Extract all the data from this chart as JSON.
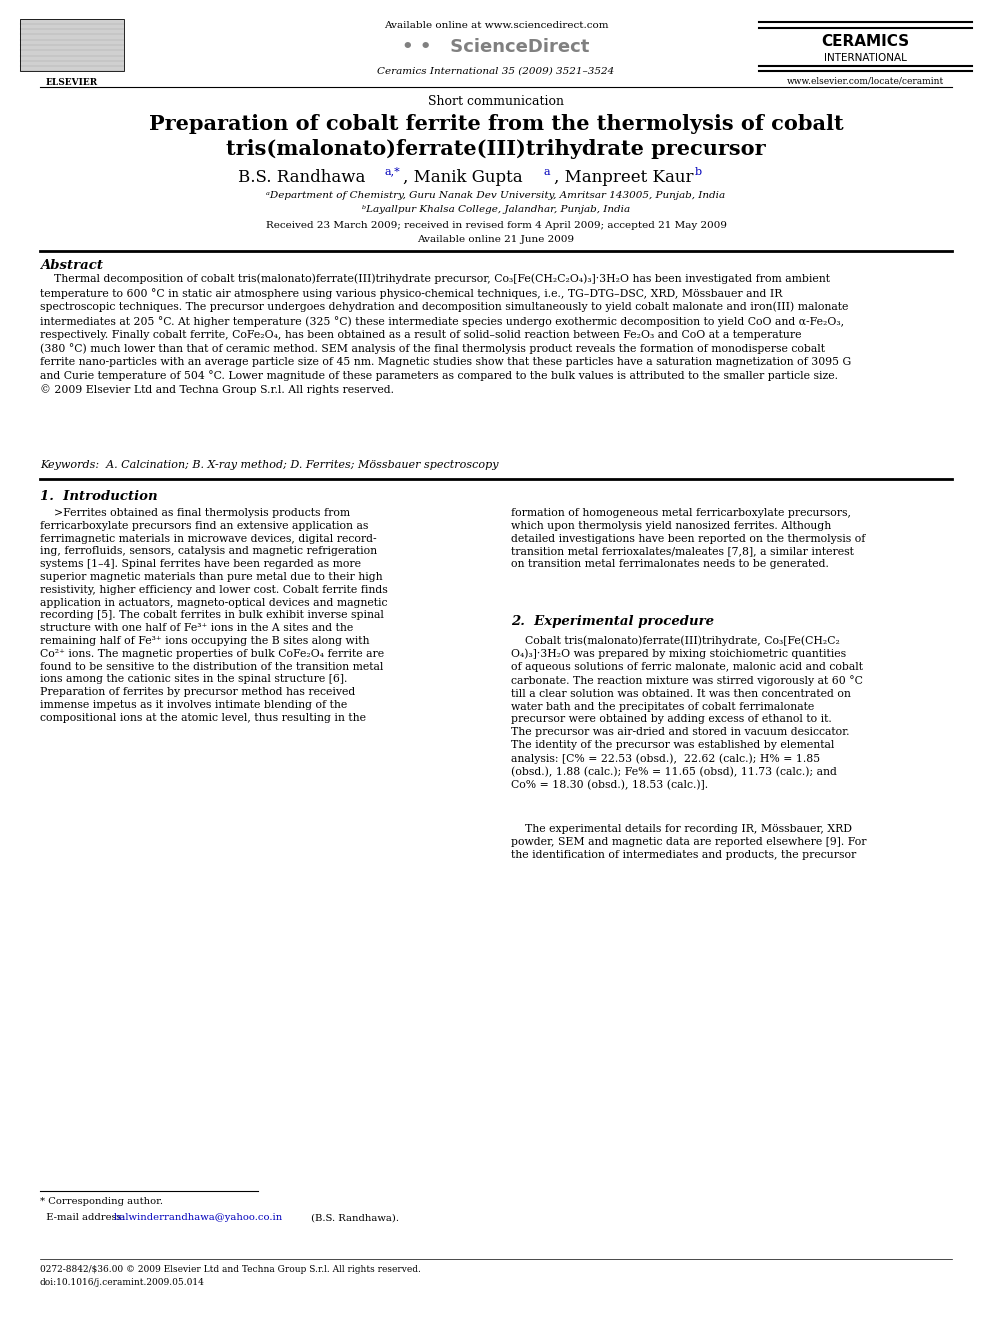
{
  "background_color": "#ffffff",
  "page_width": 9.92,
  "page_height": 13.23,
  "header": {
    "available_online": "Available online at www.sciencedirect.com",
    "journal_info": "Ceramics International 35 (2009) 3521–3524",
    "website": "www.elsevier.com/locate/ceramint",
    "ceramics_line1": "CERAMICS",
    "ceramics_line2": "INTERNATIONAL"
  },
  "article_type": "Short communication",
  "title_line1": "Preparation of cobalt ferrite from the thermolysis of cobalt",
  "title_line2": "tris(malonato)ferrate(III)trihydrate precursor",
  "affil1": "ᵃDepartment of Chemistry, Guru Nanak Dev University, Amritsar 143005, Punjab, India",
  "affil2": "ᵇLayallpur Khalsa College, Jalandhar, Punjab, India",
  "received": "Received 23 March 2009; received in revised form 4 April 2009; accepted 21 May 2009",
  "available_online2": "Available online 21 June 2009",
  "abstract_title": "Abstract",
  "abstract_text": "    Thermal decomposition of cobalt tris(malonato)ferrate(III)trihydrate precursor, Co₃[Fe(CH₂C₂O₄)₃]·3H₂O has been investigated from ambient\ntemperature to 600 °C in static air atmosphere using various physico-chemical techniques, i.e., TG–DTG–DSC, XRD, Mössbauer and IR\nspectroscopic techniques. The precursor undergoes dehydration and decomposition simultaneously to yield cobalt malonate and iron(III) malonate\nintermediates at 205 °C. At higher temperature (325 °C) these intermediate species undergo exothermic decomposition to yield CoO and α-Fe₂O₃,\nrespectively. Finally cobalt ferrite, CoFe₂O₄, has been obtained as a result of solid–solid reaction between Fe₂O₃ and CoO at a temperature\n(380 °C) much lower than that of ceramic method. SEM analysis of the final thermolysis product reveals the formation of monodisperse cobalt\nferrite nano-particles with an average particle size of 45 nm. Magnetic studies show that these particles have a saturation magnetization of 3095 G\nand Curie temperature of 504 °C. Lower magnitude of these parameters as compared to the bulk values is attributed to the smaller particle size.\n© 2009 Elsevier Ltd and Techna Group S.r.l. All rights reserved.",
  "keywords": "Keywords:  A. Calcination; B. X-ray method; D. Ferrites; Mössbauer spectroscopy",
  "section1_title": "1.  Introduction",
  "section1_left": "    >Ferrites obtained as final thermolysis products from\nferricarboxylate precursors find an extensive application as\nferrimagnetic materials in microwave devices, digital record-\ning, ferrofluids, sensors, catalysis and magnetic refrigeration\nsystems [1–4]. Spinal ferrites have been regarded as more\nsuperior magnetic materials than pure metal due to their high\nresistivity, higher efficiency and lower cost. Cobalt ferrite finds\napplication in actuators, magneto-optical devices and magnetic\nrecording [5]. The cobalt ferrites in bulk exhibit inverse spinal\nstructure with one half of Fe³⁺ ions in the A sites and the\nremaining half of Fe³⁺ ions occupying the B sites along with\nCo²⁺ ions. The magnetic properties of bulk CoFe₂O₄ ferrite are\nfound to be sensitive to the distribution of the transition metal\nions among the cationic sites in the spinal structure [6].\nPreparation of ferrites by precursor method has received\nimmense impetus as it involves intimate blending of the\ncompositional ions at the atomic level, thus resulting in the",
  "section1_right": "formation of homogeneous metal ferricarboxylate precursors,\nwhich upon thermolysis yield nanosized ferrites. Although\ndetailed investigations have been reported on the thermolysis of\ntransition metal ferrioxalates/maleates [7,8], a similar interest\non transition metal ferrimalonates needs to be generated.",
  "section2_title": "2.  Experimental procedure",
  "section2_right": "    Cobalt tris(malonato)ferrate(III)trihydrate, Co₃[Fe(CH₂C₂\nO₄)₃]·3H₂O was prepared by mixing stoichiometric quantities\nof aqueous solutions of ferric malonate, malonic acid and cobalt\ncarbonate. The reaction mixture was stirred vigorously at 60 °C\ntill a clear solution was obtained. It was then concentrated on\nwater bath and the precipitates of cobalt ferrimalonate\nprecursor were obtained by adding excess of ethanol to it.\nThe precursor was air-dried and stored in vacuum desiccator.\nThe identity of the precursor was established by elemental\nanalysis: [C% = 22.53 (obsd.),  22.62 (calc.); H% = 1.85\n(obsd.), 1.88 (calc.); Fe% = 11.65 (obsd), 11.73 (calc.); and\nCo% = 18.30 (obsd.), 18.53 (calc.)].",
  "section2_right2": "    The experimental details for recording IR, Mössbauer, XRD\npowder, SEM and magnetic data are reported elsewhere [9]. For\nthe identification of intermediates and products, the precursor",
  "footnote_star": "* Corresponding author.",
  "footnote_email_label": "  E-mail address: ",
  "footnote_email": "balwinderrandhawa@yahoo.co.in",
  "footnote_email_rest": " (B.S. Randhawa).",
  "bottom_line1": "0272-8842/$36.00 © 2009 Elsevier Ltd and Techna Group S.r.l. All rights reserved.",
  "bottom_line2": "doi:10.1016/j.ceramint.2009.05.014"
}
